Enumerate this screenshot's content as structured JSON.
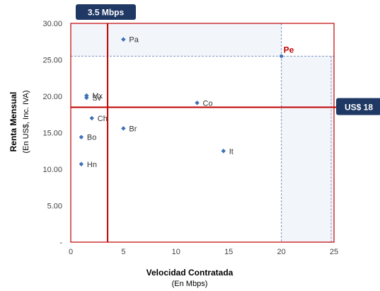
{
  "chart_data": {
    "type": "scatter",
    "xlim": [
      0,
      25
    ],
    "ylim": [
      0,
      30
    ],
    "x_ticks": [
      "0",
      "5",
      "10",
      "15",
      "20",
      "25"
    ],
    "y_ticks": [
      "-",
      "5.00",
      "10.00",
      "15.00",
      "20.00",
      "25.00",
      "30.00"
    ],
    "xlabel": "Velocidad Contratada",
    "xlabel_sub": "(En Mbps)",
    "ylabel": "Renta Mensual",
    "ylabel_sub": "(En US$, Inc. IVA)",
    "points": [
      {
        "label": "Pa",
        "x": 5.0,
        "y": 27.8
      },
      {
        "label": "Pe",
        "x": 20.0,
        "y": 25.5,
        "highlight": true
      },
      {
        "label": "Mx",
        "x": 1.5,
        "y": 20.1
      },
      {
        "label": "Sv",
        "x": 1.5,
        "y": 19.8
      },
      {
        "label": "Co",
        "x": 12.0,
        "y": 19.1
      },
      {
        "label": "Ch",
        "x": 2.0,
        "y": 17.0
      },
      {
        "label": "Br",
        "x": 5.0,
        "y": 15.6
      },
      {
        "label": "Bo",
        "x": 1.0,
        "y": 14.4
      },
      {
        "label": "It",
        "x": 14.5,
        "y": 12.5
      },
      {
        "label": "Hn",
        "x": 1.0,
        "y": 10.7
      }
    ],
    "reference_lines": {
      "vertical": {
        "x": 3.5,
        "label": "3.5 Mbps"
      },
      "horizontal": {
        "y": 18.5,
        "label": "US$ 18"
      }
    },
    "colors": {
      "marker": "#3d6fb5",
      "reference": "#c00000",
      "badge": "#1f3864",
      "highlight_fill": "#f2f5fa",
      "highlight_dash": "#7f95c0"
    }
  }
}
